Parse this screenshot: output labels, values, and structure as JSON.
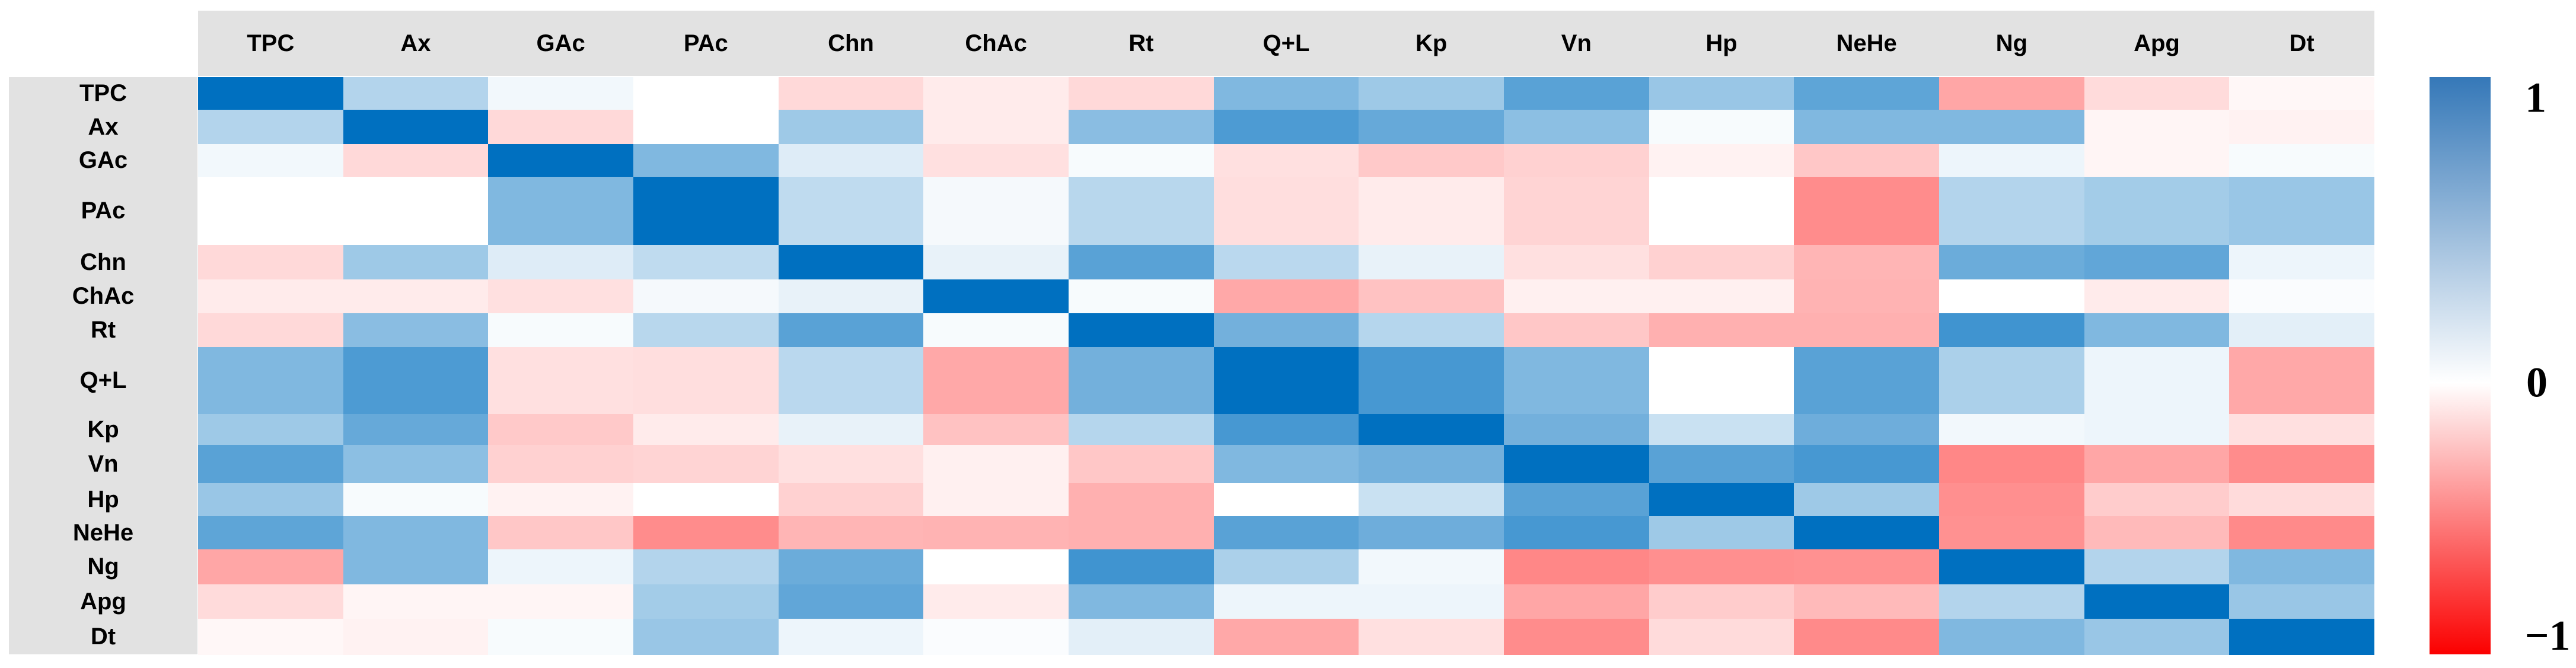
{
  "chart_data": {
    "type": "heatmap",
    "variables": [
      "TPC",
      "Ax",
      "GAc",
      "PAc",
      "Chn",
      "ChAc",
      "Rt",
      "Q+L",
      "Kp",
      "Vn",
      "Hp",
      "NeHe",
      "Ng",
      "Apg",
      "Dt"
    ],
    "matrix": [
      [
        1.0,
        0.3,
        0.05,
        0.0,
        -0.15,
        -0.08,
        -0.15,
        0.5,
        0.38,
        0.65,
        0.4,
        0.63,
        -0.35,
        -0.14,
        -0.03
      ],
      [
        0.3,
        1.0,
        -0.15,
        0.0,
        0.38,
        -0.08,
        0.46,
        0.7,
        0.6,
        0.45,
        0.03,
        0.5,
        0.5,
        -0.04,
        -0.05
      ],
      [
        0.05,
        -0.15,
        1.0,
        0.5,
        0.13,
        -0.12,
        0.03,
        -0.12,
        -0.21,
        -0.18,
        -0.05,
        -0.22,
        0.07,
        -0.04,
        0.03
      ],
      [
        0.0,
        0.0,
        0.5,
        1.0,
        0.25,
        0.04,
        0.28,
        -0.13,
        -0.08,
        -0.17,
        0.0,
        -0.45,
        0.3,
        0.36,
        0.4
      ],
      [
        -0.15,
        0.38,
        0.13,
        0.25,
        1.0,
        0.09,
        0.65,
        0.27,
        0.09,
        -0.12,
        -0.18,
        -0.29,
        0.58,
        0.62,
        0.07
      ],
      [
        -0.08,
        -0.08,
        -0.12,
        0.04,
        0.09,
        1.0,
        0.03,
        -0.34,
        -0.24,
        -0.06,
        -0.06,
        -0.3,
        0.0,
        -0.08,
        0.02
      ],
      [
        -0.15,
        0.46,
        0.03,
        0.28,
        0.65,
        0.03,
        1.0,
        0.55,
        0.29,
        -0.22,
        -0.31,
        -0.31,
        0.75,
        0.5,
        0.11
      ],
      [
        0.5,
        0.7,
        -0.12,
        -0.13,
        0.27,
        -0.34,
        0.55,
        1.0,
        0.72,
        0.5,
        0.0,
        0.65,
        0.33,
        0.07,
        -0.34
      ],
      [
        0.38,
        0.6,
        -0.21,
        -0.08,
        0.09,
        -0.24,
        0.29,
        0.72,
        1.0,
        0.55,
        0.21,
        0.57,
        0.05,
        0.07,
        -0.12
      ],
      [
        0.65,
        0.45,
        -0.18,
        -0.17,
        -0.12,
        -0.06,
        -0.22,
        0.5,
        0.55,
        1.0,
        0.65,
        0.72,
        -0.47,
        -0.35,
        -0.45
      ],
      [
        0.4,
        0.03,
        -0.05,
        0.0,
        -0.18,
        -0.06,
        -0.31,
        0.0,
        0.21,
        0.65,
        1.0,
        0.38,
        -0.44,
        -0.2,
        -0.14
      ],
      [
        0.63,
        0.5,
        -0.22,
        -0.45,
        -0.29,
        -0.3,
        -0.31,
        0.65,
        0.57,
        0.72,
        0.38,
        1.0,
        -0.43,
        -0.27,
        -0.46
      ],
      [
        -0.35,
        0.5,
        0.07,
        0.3,
        0.58,
        0.0,
        0.75,
        0.33,
        0.05,
        -0.47,
        -0.44,
        -0.43,
        1.0,
        0.3,
        0.5
      ],
      [
        -0.14,
        -0.04,
        -0.04,
        0.36,
        0.62,
        -0.08,
        0.5,
        0.07,
        0.07,
        -0.35,
        -0.2,
        -0.27,
        0.3,
        1.0,
        0.4
      ],
      [
        -0.03,
        -0.05,
        0.03,
        0.4,
        0.07,
        0.02,
        0.11,
        -0.34,
        -0.12,
        -0.45,
        -0.14,
        -0.46,
        0.5,
        0.4,
        1.0
      ]
    ],
    "value_range": [
      -1,
      1
    ],
    "legend": {
      "top_label": "1",
      "middle_label": "0",
      "bottom_label": "−1"
    },
    "layout_hints": {
      "legend_position": "right",
      "grid": false
    },
    "colors": {
      "positive_max": "#0070c0",
      "negative_max": "#ff0000",
      "zero": "#ffffff",
      "colorbar_top": "#3578b8",
      "colorbar_bottom": "#fb0000",
      "header_bg": "#e2e2e2",
      "text": "#000000"
    }
  }
}
